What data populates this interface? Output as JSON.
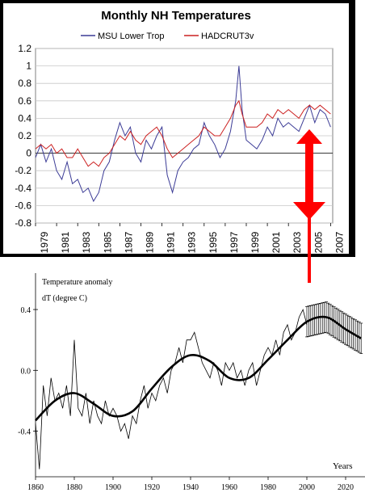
{
  "chart_data": [
    {
      "type": "line",
      "title": "Monthly NH Temperatures",
      "xlabel": "",
      "ylabel": "",
      "xlim": [
        1979,
        2007.2
      ],
      "ylim": [
        -0.8,
        1.2
      ],
      "y_ticks": [
        "1.2",
        "1",
        "0.8",
        "0.6",
        "0.4",
        "0.2",
        "0",
        "-0.2",
        "-0.4",
        "-0.6",
        "-0.8"
      ],
      "x_ticks": [
        "1979",
        "1981",
        "1983",
        "1985",
        "1987",
        "1989",
        "1991",
        "1993",
        "1995",
        "1997",
        "1999",
        "2001",
        "2003",
        "2005",
        "2007"
      ],
      "grid": true,
      "legend": "top-center",
      "series": [
        {
          "name": "MSU Lower Trop",
          "color": "#3c3c96",
          "x": [
            1979.0,
            1979.5,
            1980.0,
            1980.5,
            1981.0,
            1981.5,
            1982.0,
            1982.5,
            1983.0,
            1983.5,
            1984.0,
            1984.5,
            1985.0,
            1985.5,
            1986.0,
            1986.5,
            1987.0,
            1987.5,
            1988.0,
            1988.5,
            1989.0,
            1989.5,
            1990.0,
            1990.5,
            1991.0,
            1991.5,
            1992.0,
            1992.5,
            1993.0,
            1993.5,
            1994.0,
            1994.5,
            1995.0,
            1995.5,
            1996.0,
            1996.5,
            1997.0,
            1997.5,
            1998.0,
            1998.3,
            1998.6,
            1999.0,
            1999.5,
            2000.0,
            2000.5,
            2001.0,
            2001.5,
            2002.0,
            2002.5,
            2003.0,
            2003.5,
            2004.0,
            2004.5,
            2005.0,
            2005.5,
            2006.0,
            2006.5,
            2007.0
          ],
          "values": [
            -0.05,
            0.1,
            -0.1,
            0.05,
            -0.2,
            -0.3,
            -0.1,
            -0.35,
            -0.3,
            -0.45,
            -0.4,
            -0.55,
            -0.45,
            -0.2,
            -0.1,
            0.15,
            0.35,
            0.2,
            0.3,
            0.0,
            -0.1,
            0.15,
            0.05,
            0.2,
            0.3,
            -0.25,
            -0.45,
            -0.2,
            -0.1,
            -0.05,
            0.05,
            0.1,
            0.35,
            0.2,
            0.1,
            -0.05,
            0.05,
            0.25,
            0.6,
            1.0,
            0.5,
            0.15,
            0.1,
            0.05,
            0.15,
            0.3,
            0.2,
            0.4,
            0.3,
            0.35,
            0.3,
            0.25,
            0.4,
            0.55,
            0.35,
            0.5,
            0.45,
            0.3
          ]
        },
        {
          "name": "HADCRUT3v",
          "color": "#cc2020",
          "x": [
            1979.0,
            1979.5,
            1980.0,
            1980.5,
            1981.0,
            1981.5,
            1982.0,
            1982.5,
            1983.0,
            1983.5,
            1984.0,
            1984.5,
            1985.0,
            1985.5,
            1986.0,
            1986.5,
            1987.0,
            1987.5,
            1988.0,
            1988.5,
            1989.0,
            1989.5,
            1990.0,
            1990.5,
            1991.0,
            1991.5,
            1992.0,
            1992.5,
            1993.0,
            1993.5,
            1994.0,
            1994.5,
            1995.0,
            1995.5,
            1996.0,
            1996.5,
            1997.0,
            1997.5,
            1998.0,
            1998.3,
            1998.6,
            1999.0,
            1999.5,
            2000.0,
            2000.5,
            2001.0,
            2001.5,
            2002.0,
            2002.5,
            2003.0,
            2003.5,
            2004.0,
            2004.5,
            2005.0,
            2005.5,
            2006.0,
            2006.5,
            2007.0
          ],
          "values": [
            0.05,
            0.1,
            0.05,
            0.1,
            0.0,
            0.05,
            -0.05,
            -0.05,
            0.05,
            -0.05,
            -0.15,
            -0.1,
            -0.15,
            -0.05,
            0.0,
            0.1,
            0.2,
            0.15,
            0.25,
            0.15,
            0.1,
            0.2,
            0.25,
            0.3,
            0.2,
            0.05,
            -0.05,
            0.0,
            0.05,
            0.1,
            0.15,
            0.2,
            0.3,
            0.25,
            0.2,
            0.2,
            0.3,
            0.4,
            0.55,
            0.6,
            0.45,
            0.3,
            0.3,
            0.3,
            0.35,
            0.45,
            0.4,
            0.5,
            0.45,
            0.5,
            0.45,
            0.4,
            0.5,
            0.55,
            0.5,
            0.55,
            0.5,
            0.45
          ]
        }
      ]
    },
    {
      "type": "line",
      "title": "",
      "xlabel": "Years",
      "ylabel": "Temperature anomaly\ndT (degree C)",
      "xlim": [
        1860,
        2030
      ],
      "ylim": [
        -0.7,
        0.48
      ],
      "y_ticks": [
        "0.4",
        "0.0",
        "-0.4"
      ],
      "x_ticks": [
        "1860",
        "1880",
        "1900",
        "1920",
        "1940",
        "1960",
        "1980",
        "2000",
        "2020"
      ],
      "grid": false,
      "series": [
        {
          "color": "#000000",
          "x": [
            1860,
            1862,
            1864,
            1866,
            1868,
            1870,
            1872,
            1874,
            1876,
            1878,
            1880,
            1882,
            1884,
            1886,
            1888,
            1890,
            1892,
            1894,
            1896,
            1898,
            1900,
            1902,
            1904,
            1906,
            1908,
            1910,
            1912,
            1914,
            1916,
            1918,
            1920,
            1922,
            1924,
            1926,
            1928,
            1930,
            1932,
            1934,
            1936,
            1938,
            1940,
            1942,
            1944,
            1946,
            1948,
            1950,
            1952,
            1954,
            1956,
            1958,
            1960,
            1962,
            1964,
            1966,
            1968,
            1970,
            1972,
            1974,
            1976,
            1978,
            1980,
            1982,
            1984,
            1986,
            1988,
            1990,
            1992,
            1994,
            1996,
            1998,
            2000
          ],
          "values": [
            -0.35,
            -0.65,
            -0.1,
            -0.3,
            -0.05,
            -0.2,
            -0.15,
            -0.25,
            -0.1,
            -0.3,
            0.2,
            -0.25,
            -0.3,
            -0.15,
            -0.35,
            -0.2,
            -0.3,
            -0.35,
            -0.2,
            -0.3,
            -0.25,
            -0.3,
            -0.4,
            -0.35,
            -0.45,
            -0.3,
            -0.35,
            -0.2,
            -0.1,
            -0.25,
            -0.15,
            -0.2,
            -0.1,
            -0.05,
            -0.15,
            0.0,
            0.05,
            0.15,
            0.05,
            0.2,
            0.2,
            0.25,
            0.15,
            0.05,
            0.0,
            -0.05,
            0.05,
            0.0,
            -0.1,
            0.05,
            0.0,
            0.05,
            -0.05,
            0.0,
            -0.1,
            0.0,
            0.05,
            -0.1,
            0.0,
            0.1,
            0.15,
            0.1,
            0.2,
            0.1,
            0.25,
            0.3,
            0.2,
            0.25,
            0.35,
            0.4,
            0.3
          ]
        },
        {
          "color": "#000000",
          "x": [
            1860,
            1870,
            1880,
            1890,
            1900,
            1910,
            1920,
            1930,
            1940,
            1950,
            1960,
            1970,
            1980,
            1990,
            2000,
            2010,
            2020,
            2028
          ],
          "values": [
            -0.33,
            -0.2,
            -0.15,
            -0.22,
            -0.3,
            -0.27,
            -0.12,
            0.02,
            0.1,
            0.06,
            -0.05,
            -0.05,
            0.07,
            0.2,
            0.32,
            0.35,
            0.27,
            0.21
          ]
        }
      ],
      "error_bars": {
        "x_range": [
          2000,
          2028
        ],
        "upper": 0.1,
        "lower": 0.1
      }
    }
  ]
}
